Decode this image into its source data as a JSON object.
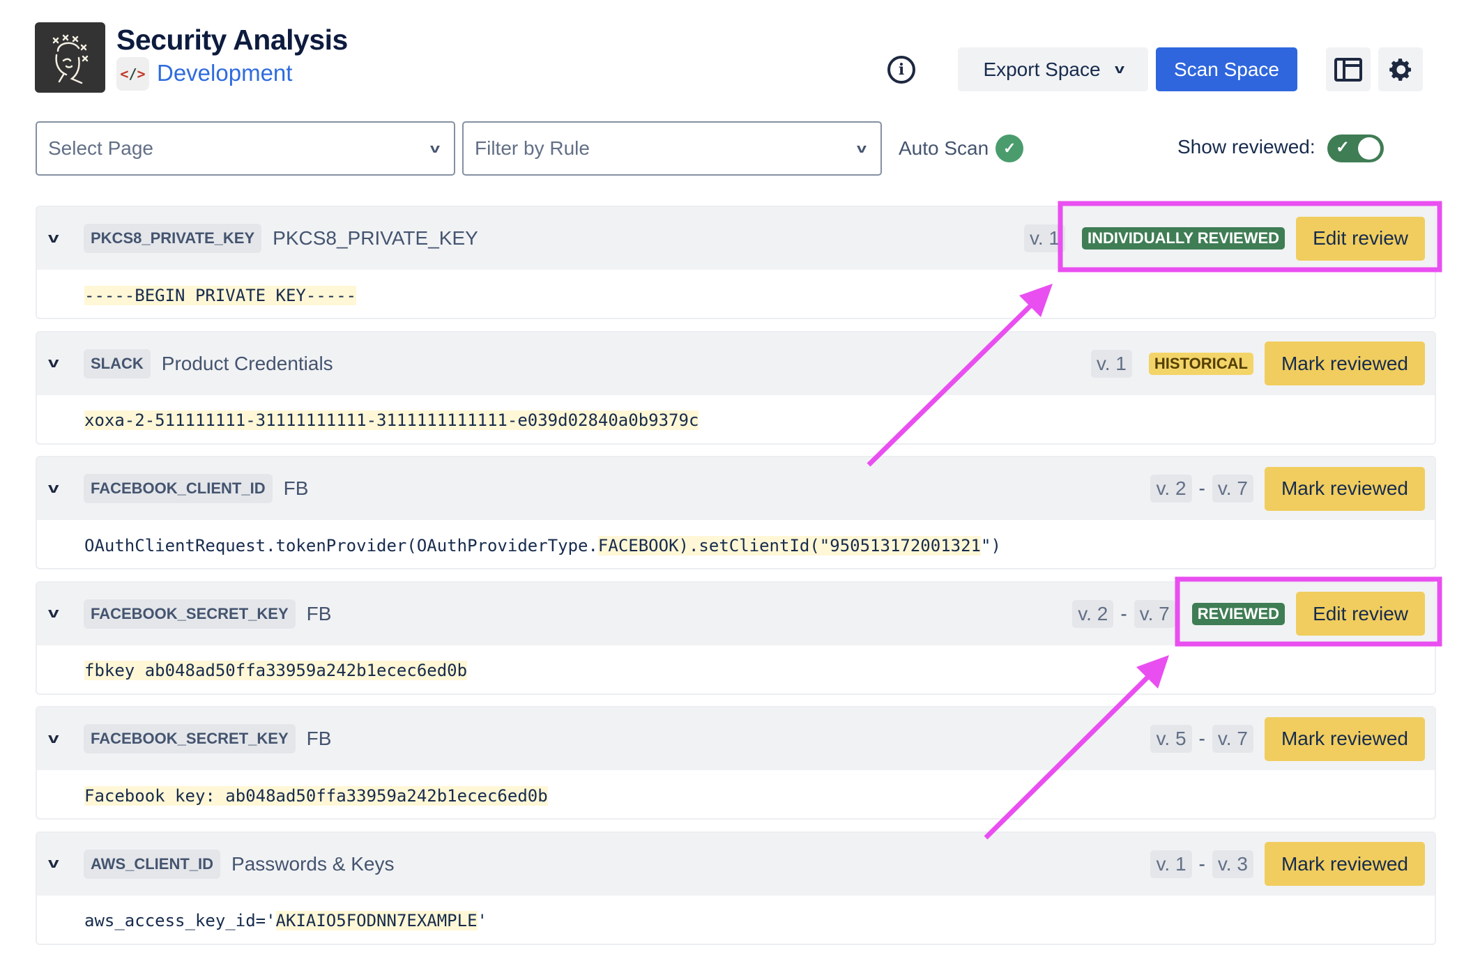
{
  "header": {
    "title": "Security Analysis",
    "space_name": "Development",
    "space_icon": "code-icon"
  },
  "toolbar": {
    "export_label": "Export Space",
    "scan_label": "Scan Space"
  },
  "filters": {
    "page_placeholder": "Select Page",
    "rule_placeholder": "Filter by Rule",
    "auto_scan_label": "Auto Scan",
    "auto_scan_enabled": true,
    "show_reviewed_label": "Show reviewed:",
    "show_reviewed": true
  },
  "colors": {
    "accent": "#2f66dd",
    "reviewed": "#3f7d55",
    "historical": "#f3d468",
    "action": "#f0cd5e",
    "annotation": "#e94ff0"
  },
  "findings": [
    {
      "rule": "PKCS8_PRIVATE_KEY",
      "page": "PKCS8_PRIVATE_KEY",
      "ver_from": "v. 1",
      "ver_to": "",
      "badge": "INDIVIDUALLY REVIEWED",
      "badge_type": "green",
      "action": "Edit review",
      "pre": "",
      "match": "-----BEGIN PRIVATE KEY-----",
      "post": "",
      "highlighted_box": true
    },
    {
      "rule": "SLACK",
      "page": "Product Credentials",
      "ver_from": "v. 1",
      "ver_to": "",
      "badge": "HISTORICAL",
      "badge_type": "yellow",
      "action": "Mark reviewed",
      "pre": "",
      "match": "xoxa-2-511111111-31111111111-3111111111111-e039d02840a0b9379c",
      "post": ""
    },
    {
      "rule": "FACEBOOK_CLIENT_ID",
      "page": "FB",
      "ver_from": "v. 2",
      "ver_to": "v. 7",
      "badge": "",
      "action": "Mark reviewed",
      "pre": "OAuthClientRequest.tokenProvider(OAuthProviderType.",
      "match": "FACEBOOK).setClientId(\"950513172001321",
      "post": "\")"
    },
    {
      "rule": "FACEBOOK_SECRET_KEY",
      "page": "FB",
      "ver_from": "v. 2",
      "ver_to": "v. 7",
      "badge": "REVIEWED",
      "badge_type": "green",
      "action": "Edit review",
      "pre": "",
      "match": "fbkey ab048ad50ffa33959a242b1ecec6ed0b",
      "post": "",
      "highlighted_box": true
    },
    {
      "rule": "FACEBOOK_SECRET_KEY",
      "page": "FB",
      "ver_from": "v. 5",
      "ver_to": "v. 7",
      "badge": "",
      "action": "Mark reviewed",
      "pre": "",
      "match": "Facebook key: ab048ad50ffa33959a242b1ecec6ed0b",
      "post": ""
    },
    {
      "rule": "AWS_CLIENT_ID",
      "page": "Passwords & Keys",
      "ver_from": "v. 1",
      "ver_to": "v. 3",
      "badge": "",
      "action": "Mark reviewed",
      "pre": "aws_access_key_id='",
      "match": "AKIAIO5FODNN7EXAMPLE",
      "post": "'"
    }
  ]
}
